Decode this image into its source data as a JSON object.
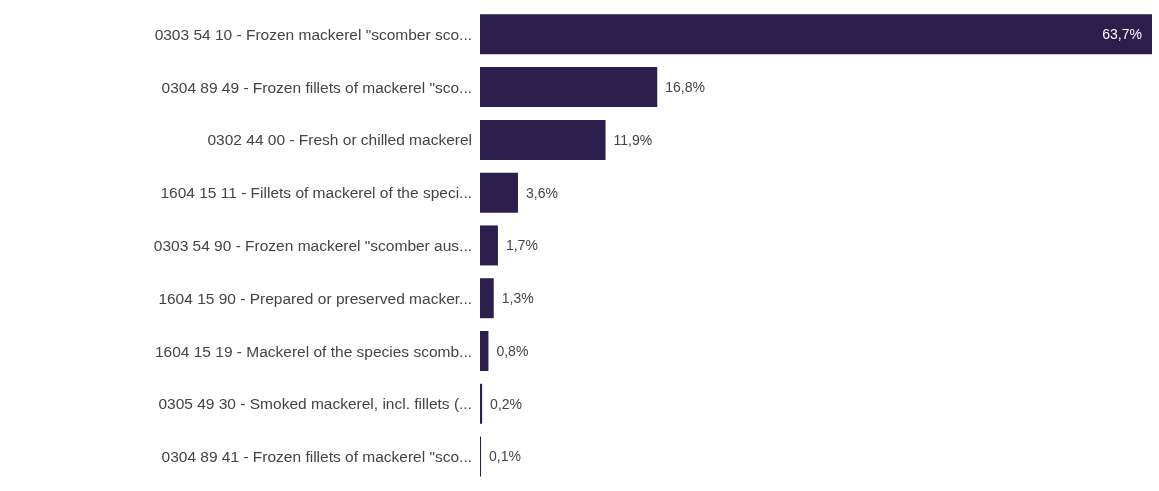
{
  "chart_data": {
    "type": "bar",
    "orientation": "horizontal",
    "categories": [
      "0303 54 10 - Frozen mackerel \"scomber sco...",
      "0304 89 49 - Frozen fillets of mackerel \"sco...",
      "0302 44 00 - Fresh or chilled mackerel",
      "1604 15 11 - Fillets of mackerel of the speci...",
      "0303 54 90 - Frozen mackerel \"scomber aus...",
      "1604 15 90 - Prepared or preserved macker...",
      "1604 15 19 - Mackerel of the species scomb...",
      "0305 49 30 - Smoked mackerel, incl. fillets (...",
      "0304 89 41 - Frozen fillets of mackerel \"sco..."
    ],
    "values": [
      63.7,
      16.8,
      11.9,
      3.6,
      1.7,
      1.3,
      0.8,
      0.2,
      0.1
    ],
    "value_labels": [
      "63,7%",
      "16,8%",
      "11,9%",
      "3,6%",
      "1,7%",
      "1,3%",
      "0,8%",
      "0,2%",
      "0,1%"
    ],
    "color": "#2b1d4c"
  }
}
